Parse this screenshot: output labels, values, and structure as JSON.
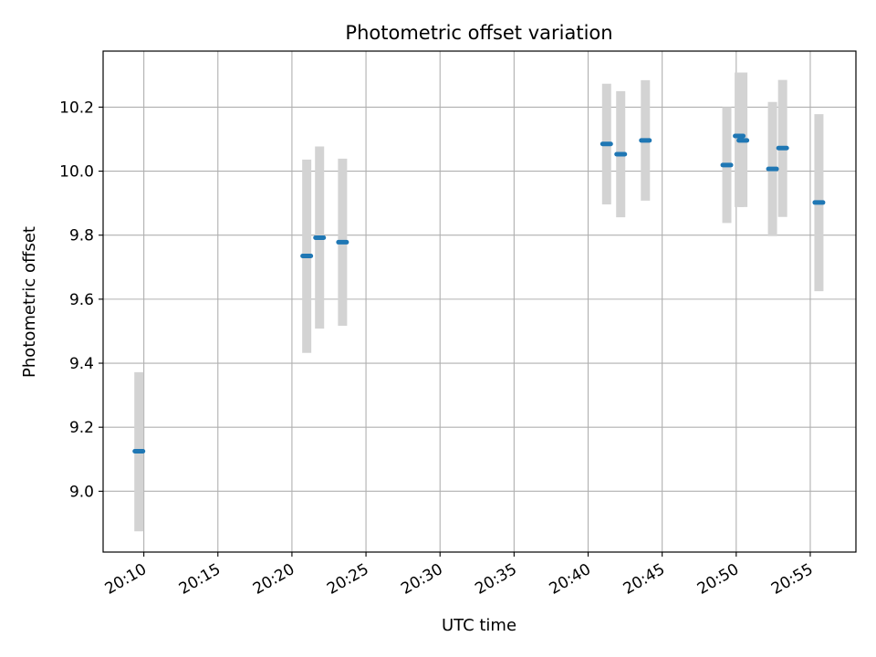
{
  "chart_data": {
    "type": "scatter",
    "title": "Photometric offset variation",
    "xlabel": "UTC time",
    "ylabel": "Photometric offset",
    "x_tick_labels": [
      "20:10",
      "20:15",
      "20:20",
      "20:25",
      "20:30",
      "20:35",
      "20:40",
      "20:45",
      "20:50",
      "20:55"
    ],
    "y_tick_labels": [
      "9.0",
      "9.2",
      "9.4",
      "9.6",
      "9.8",
      "10.0",
      "10.2"
    ],
    "y_ticks": [
      9.0,
      9.2,
      9.4,
      9.6,
      9.8,
      10.0,
      10.2
    ],
    "xlim": [
      "20:07:15",
      "20:58:05"
    ],
    "ylim": [
      8.81,
      10.375
    ],
    "grid": true,
    "colors": {
      "point": "#1f77b4",
      "errorbar": "#d3d3d3",
      "grid": "#b0b0b0"
    },
    "points": [
      {
        "x": "20:09:40",
        "y": 9.125,
        "y_low": 8.875,
        "y_high": 9.372
      },
      {
        "x": "20:21:00",
        "y": 9.735,
        "y_low": 9.432,
        "y_high": 10.036
      },
      {
        "x": "20:21:52",
        "y": 9.792,
        "y_low": 9.508,
        "y_high": 10.077
      },
      {
        "x": "20:23:25",
        "y": 9.778,
        "y_low": 9.517,
        "y_high": 10.039
      },
      {
        "x": "20:41:15",
        "y": 10.085,
        "y_low": 9.896,
        "y_high": 10.273
      },
      {
        "x": "20:42:12",
        "y": 10.053,
        "y_low": 9.856,
        "y_high": 10.25
      },
      {
        "x": "20:43:52",
        "y": 10.096,
        "y_low": 9.908,
        "y_high": 10.284
      },
      {
        "x": "20:49:22",
        "y": 10.019,
        "y_low": 9.838,
        "y_high": 10.2
      },
      {
        "x": "20:50:12",
        "y": 10.11,
        "y_low": 9.888,
        "y_high": 10.308
      },
      {
        "x": "20:50:27",
        "y": 10.096,
        "y_low": 9.888,
        "y_high": 10.308
      },
      {
        "x": "20:52:27",
        "y": 10.007,
        "y_low": 9.797,
        "y_high": 10.216
      },
      {
        "x": "20:53:08",
        "y": 10.072,
        "y_low": 9.857,
        "y_high": 10.285
      },
      {
        "x": "20:55:35",
        "y": 9.902,
        "y_low": 9.625,
        "y_high": 10.178
      }
    ]
  }
}
